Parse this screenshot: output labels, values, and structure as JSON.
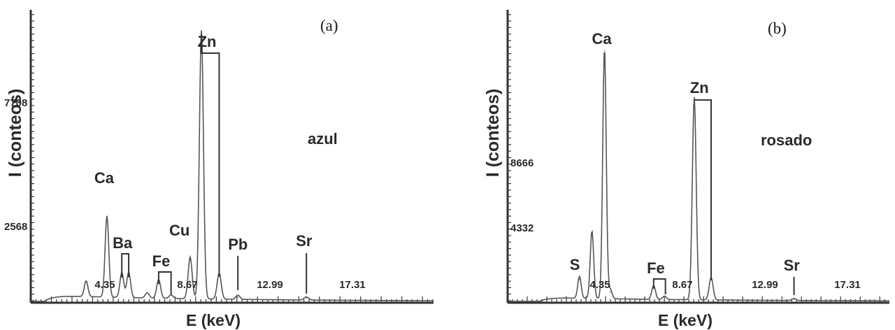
{
  "chart_data": [
    {
      "type": "line",
      "panel_label": "(a)",
      "sample": "azul",
      "xlabel": "E (keV)",
      "ylabel": "I (conteos)",
      "xticks": [
        "4.35",
        "8.67",
        "12.99",
        "17.31"
      ],
      "yticks": [
        "2568",
        "7708"
      ],
      "xlim": [
        -0.3,
        20.8
      ],
      "ylim": [
        0,
        14000
      ],
      "peaks": [
        {
          "label": "Ca",
          "energy": 3.69,
          "height": 3900
        },
        {
          "label": "Ba",
          "energy": 4.47,
          "height": 1200
        },
        {
          "label": "Ba",
          "energy": 4.83,
          "height": 1220
        },
        {
          "label": "Fe",
          "energy": 6.4,
          "height": 900
        },
        {
          "label": "Cu",
          "energy": 8.05,
          "height": 2000
        },
        {
          "label": "Zn",
          "energy": 8.64,
          "height": 12900
        },
        {
          "label": "Zn",
          "energy": 9.57,
          "height": 1250
        },
        {
          "label": "Pb",
          "energy": 10.55,
          "height": 200
        },
        {
          "label": "Sr",
          "energy": 14.14,
          "height": 150
        }
      ],
      "other_peaks": [
        {
          "energy": 2.6,
          "height": 750
        },
        {
          "energy": 5.8,
          "height": 250
        },
        {
          "energy": 7.05,
          "height": 170
        }
      ]
    },
    {
      "type": "line",
      "panel_label": "(b)",
      "sample": "rosado",
      "xlabel": "E (keV)",
      "ylabel": "I (conteos)",
      "xticks": [
        "4.35",
        "8.67",
        "12.99",
        "17.31"
      ],
      "yticks": [
        "4332",
        "8666"
      ],
      "xlim": [
        -1.65,
        19.4
      ],
      "ylim": [
        0,
        22000
      ],
      "peaks": [
        {
          "label": "S",
          "energy": 2.31,
          "height": 1650
        },
        {
          "label": "Ca",
          "energy": 3.69,
          "height": 18900
        },
        {
          "label": "Ca",
          "energy": 4.01,
          "height": 700
        },
        {
          "label": "Fe",
          "energy": 6.4,
          "height": 1050
        },
        {
          "label": "Zn",
          "energy": 8.64,
          "height": 15300
        },
        {
          "label": "Zn",
          "energy": 9.57,
          "height": 1700
        },
        {
          "label": "Sr",
          "energy": 14.14,
          "height": 150
        }
      ],
      "other_peaks": [
        {
          "energy": 3.0,
          "height": 5100
        },
        {
          "energy": 7.0,
          "height": 250
        }
      ]
    }
  ]
}
